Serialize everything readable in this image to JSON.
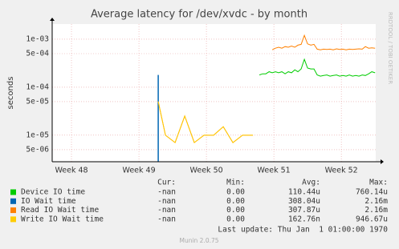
{
  "chart_data": {
    "type": "line",
    "title": "Average latency for /dev/xvdc - by month",
    "y_label": "seconds",
    "side_label": "RRDTOOL / TOBI OETIKER",
    "log_scale": true,
    "grid": true,
    "xlim": [
      47.714,
      52.51
    ],
    "xticks": [
      {
        "value": 48,
        "label": "Week 48"
      },
      {
        "value": 49,
        "label": "Week 49"
      },
      {
        "value": 50,
        "label": "Week 50"
      },
      {
        "value": 51,
        "label": "Week 51"
      },
      {
        "value": 52,
        "label": "Week 52"
      }
    ],
    "ylim": [
      2.8e-06,
      0.00207
    ],
    "yticks": [
      {
        "value": 0.001,
        "label": "1e-03"
      },
      {
        "value": 0.0005,
        "label": "5e-04"
      },
      {
        "value": 0.0001,
        "label": "1e-04"
      },
      {
        "value": 5e-05,
        "label": "5e-05"
      },
      {
        "value": 1e-05,
        "label": "1e-05"
      },
      {
        "value": 5e-06,
        "label": "5e-06"
      }
    ],
    "x": [
      49.286,
      49.393,
      49.536,
      49.679,
      49.821,
      49.964,
      50.107,
      50.25,
      50.393,
      50.536,
      50.69,
      50.786,
      50.833,
      50.881,
      50.929,
      50.976,
      51.024,
      51.071,
      51.119,
      51.167,
      51.214,
      51.262,
      51.31,
      51.357,
      51.405,
      51.452,
      51.5,
      51.548,
      51.595,
      51.643,
      51.69,
      51.738,
      51.786,
      51.833,
      51.881,
      51.929,
      51.976,
      52.024,
      52.071,
      52.119,
      52.167,
      52.214,
      52.262,
      52.31,
      52.357,
      52.405,
      52.452,
      52.5
    ],
    "legend_headers": [
      "Cur:",
      "Min:",
      "Avg:",
      "Max:"
    ],
    "series": [
      {
        "name": "Device IO time",
        "color": "#00cc00",
        "cur": "-nan",
        "min": "0.00",
        "avg": "110.44u",
        "max": "760.14u",
        "values": [
          null,
          null,
          null,
          null,
          null,
          null,
          null,
          null,
          null,
          null,
          null,
          0.00018,
          0.00019,
          0.00019,
          0.00021,
          0.0002,
          0.00021,
          0.0002,
          0.00021,
          0.00019,
          0.00021,
          0.0002,
          0.00023,
          0.00021,
          0.00024,
          0.00038,
          0.00025,
          0.00024,
          0.00024,
          0.00018,
          0.00017,
          0.000175,
          0.00018,
          0.00017,
          0.000175,
          0.00018,
          0.00017,
          0.000175,
          0.00017,
          0.00018,
          0.00017,
          0.000175,
          0.00017,
          0.00018,
          0.000175,
          0.00019,
          0.00021,
          0.0002
        ]
      },
      {
        "name": "IO Wait time",
        "color": "#0066b3",
        "cur": "-nan",
        "min": "0.00",
        "avg": "308.04u",
        "max": "2.16m",
        "values": [
          0.00018,
          null,
          null,
          null,
          null,
          null,
          null,
          null,
          null,
          null,
          null,
          null,
          null,
          null,
          null,
          null,
          null,
          null,
          null,
          null,
          null,
          null,
          null,
          null,
          null,
          null,
          null,
          null,
          null,
          null,
          null,
          null,
          null,
          null,
          null,
          null,
          null,
          null,
          null,
          null,
          null,
          null,
          null,
          null,
          null,
          null,
          null,
          null
        ]
      },
      {
        "name": "Read IO Wait time",
        "color": "#ff8000",
        "cur": "-nan",
        "min": "0.00",
        "avg": "307.87u",
        "max": "2.16m",
        "values": [
          5e-05,
          1e-05,
          7e-06,
          2.5e-05,
          7e-06,
          1e-05,
          1e-05,
          1.5e-05,
          7e-06,
          1e-05,
          1e-05,
          null,
          null,
          null,
          null,
          0.0006,
          0.00065,
          0.00068,
          0.00065,
          0.0007,
          0.00068,
          0.00072,
          0.00068,
          0.00075,
          0.00078,
          0.0012,
          0.0008,
          0.00075,
          0.00078,
          0.00062,
          0.0006,
          0.00062,
          0.00061,
          0.00062,
          0.0006,
          0.00063,
          0.00061,
          0.00062,
          0.0006,
          0.00062,
          0.00061,
          0.00062,
          0.00063,
          0.00062,
          0.0007,
          0.00065,
          0.00066,
          0.00065
        ]
      },
      {
        "name": "Write IO Wait time",
        "color": "#ffcc00",
        "cur": "-nan",
        "min": "0.00",
        "avg": "162.76n",
        "max": "946.67u",
        "values": [
          5e-05,
          1e-05,
          7e-06,
          2.5e-05,
          7e-06,
          1e-05,
          1e-05,
          1.5e-05,
          7e-06,
          1e-05,
          1e-05,
          null,
          null,
          null,
          null,
          null,
          null,
          null,
          null,
          null,
          null,
          null,
          null,
          null,
          null,
          null,
          null,
          null,
          null,
          null,
          null,
          null,
          null,
          null,
          null,
          null,
          null,
          null,
          null,
          null,
          null,
          null,
          null,
          null,
          null,
          null,
          null,
          null
        ]
      }
    ],
    "last_update": "Last update: Thu Jan  1 01:00:00 1970",
    "footer": "Munin 2.0.75"
  }
}
